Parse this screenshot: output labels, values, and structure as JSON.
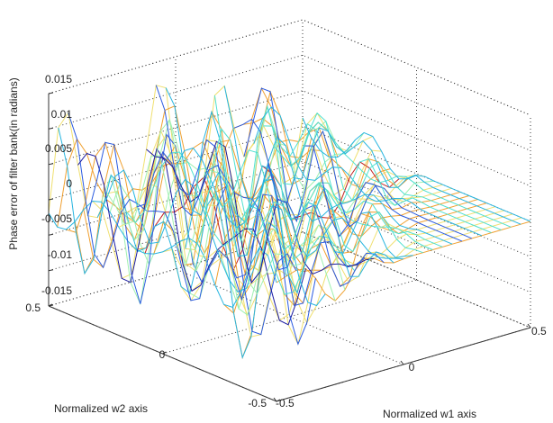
{
  "chart_data": {
    "type": "surface",
    "title": "",
    "xlabel": "Normalized w1 axis",
    "ylabel": "Normalized w2 axis",
    "zlabel": "Phase error of filter bank(in radians)",
    "xlim": [
      -0.5,
      0.5
    ],
    "ylim": [
      -0.5,
      0.5
    ],
    "zlim": [
      -0.015,
      0.015
    ],
    "x_ticks": [
      "-0.5",
      "0",
      "0.5"
    ],
    "y_ticks": [
      "-0.5",
      "0",
      "0.5"
    ],
    "z_ticks": [
      "-0.015",
      "-0.01",
      "-0.005",
      "0",
      "0.005",
      "0.01",
      "0.015"
    ],
    "grid": true,
    "colormap": [
      "#1a1aa0",
      "#2b5be0",
      "#27b5e0",
      "#4fe0d0",
      "#9ff0b0",
      "#f0e070",
      "#f0a030",
      "#c02020"
    ],
    "surface_shape": "mesh with oscillating ripples of amplitude about 0.015 rad across the w1-w2 plane; flat (0) along one diagonal corner region"
  }
}
